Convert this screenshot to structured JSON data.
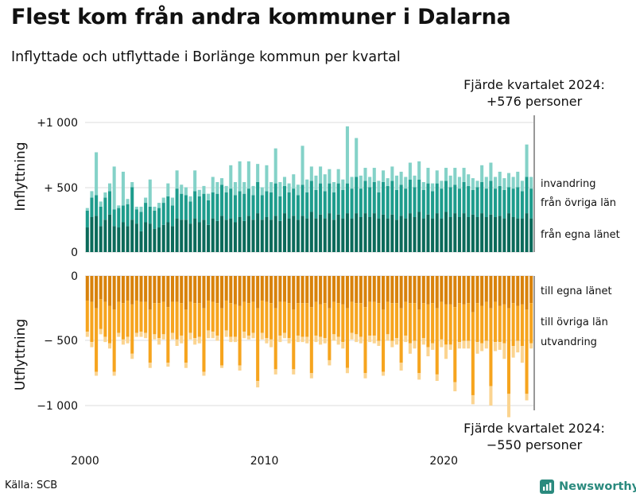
{
  "title": "Flest kom från andra kommuner i Dalarna",
  "subtitle": "Inflyttade och utflyttade i Borlänge kommun per kvartal",
  "annotation_top": [
    "Fjärde kvartalet 2024:",
    "+576 personer"
  ],
  "annotation_bottom": [
    "Fjärde kvartalet 2024:",
    "−550 personer"
  ],
  "source": "Källa: SCB",
  "brand": "Newsworthy",
  "colors": {
    "in_egna": "#0b6a5a",
    "in_ovriga": "#1d9c8c",
    "in_invandring": "#84d2c8",
    "out_egna": "#d8820b",
    "out_ovriga": "#f6a41e",
    "out_utvandring": "#fbd490",
    "grid": "#dddddd",
    "axis": "#555555",
    "brand": "#2a8a7e"
  },
  "chart_data": {
    "type": "bar",
    "stacked": true,
    "x_start_year": 2000,
    "quarters_per_year": 4,
    "x_ticks": [
      "2000",
      "2010",
      "2020"
    ],
    "panels": [
      {
        "ylabel": "Inflyttning",
        "ylim": [
          0,
          1000
        ],
        "y_ticks": [
          0,
          500,
          1000
        ],
        "y_tick_labels": [
          "0",
          "+ 500",
          "+1 000"
        ],
        "series": [
          {
            "name": "från egna länet",
            "values": [
              190,
              270,
              280,
              200,
              250,
              290,
              200,
              190,
              230,
              200,
              250,
              220,
              160,
              230,
              220,
              180,
              190,
              210,
              230,
              200,
              260,
              250,
              250,
              220,
              260,
              230,
              250,
              210,
              260,
              240,
              280,
              250,
              260,
              230,
              270,
              240,
              280,
              250,
              300,
              250,
              270,
              250,
              280,
              240,
              300,
              260,
              280,
              250,
              280,
              260,
              310,
              260,
              290,
              260,
              300,
              250,
              290,
              260,
              300,
              260,
              300,
              270,
              300,
              270,
              300,
              260,
              290,
              260,
              290,
              250,
              280,
              260,
              300,
              270,
              310,
              260,
              290,
              260,
              300,
              260,
              310,
              270,
              300,
              270,
              300,
              270,
              290,
              270,
              300,
              270,
              290,
              270,
              280,
              260,
              300,
              270,
              260,
              260,
              300,
              260
            ]
          },
          {
            "name": "från övriga län",
            "values": [
              130,
              150,
              160,
              150,
              170,
              180,
              130,
              150,
              130,
              170,
              250,
              110,
              150,
              150,
              130,
              140,
              150,
              170,
              200,
              160,
              230,
              200,
              190,
              170,
              210,
              200,
              200,
              190,
              200,
              210,
              240,
              210,
              230,
              210,
              200,
              210,
              210,
              190,
              240,
              190,
              200,
              210,
              250,
              190,
              210,
              200,
              210,
              190,
              240,
              200,
              240,
              220,
              240,
              210,
              230,
              210,
              240,
              220,
              230,
              230,
              280,
              220,
              250,
              230,
              240,
              200,
              250,
              250,
              260,
              230,
              240,
              230,
              260,
              230,
              250,
              220,
              240,
              210,
              230,
              230,
              240,
              230,
              220,
              220,
              240,
              240,
              190,
              230,
              240,
              220,
              260,
              220,
              230,
              220,
              200,
              220,
              240,
              210,
              280,
              230
            ]
          },
          {
            "name": "invandring",
            "values": [
              20,
              50,
              330,
              40,
              40,
              60,
              330,
              20,
              260,
              40,
              40,
              20,
              40,
              40,
              210,
              30,
              40,
              40,
              100,
              60,
              140,
              70,
              60,
              40,
              160,
              50,
              60,
              50,
              120,
              90,
              50,
              50,
              180,
              100,
              230,
              90,
              210,
              70,
              140,
              60,
              200,
              80,
              270,
              110,
              70,
              70,
              110,
              80,
              300,
              100,
              110,
              110,
              130,
              130,
              110,
              80,
              110,
              80,
              440,
              90,
              300,
              100,
              100,
              80,
              110,
              90,
              90,
              60,
              110,
              110,
              100,
              90,
              130,
              90,
              140,
              60,
              120,
              60,
              100,
              60,
              100,
              90,
              130,
              90,
              110,
              90,
              90,
              50,
              130,
              90,
              140,
              90,
              110,
              90,
              110,
              90,
              120,
              80,
              250,
              90
            ]
          }
        ]
      },
      {
        "ylabel": "Utflyttning",
        "ylim": [
          -1000,
          0
        ],
        "y_ticks": [
          0,
          -500,
          -1000
        ],
        "y_tick_labels": [
          "0",
          "− 500",
          "−1 000"
        ],
        "series": [
          {
            "name": "till egna länet",
            "values": [
              -190,
              -200,
              -250,
              -180,
              -200,
              -230,
              -260,
              -200,
              -210,
              -190,
              -220,
              -190,
              -200,
              -200,
              -260,
              -210,
              -210,
              -200,
              -240,
              -200,
              -200,
              -210,
              -260,
              -200,
              -210,
              -210,
              -250,
              -190,
              -200,
              -210,
              -250,
              -190,
              -210,
              -220,
              -230,
              -200,
              -210,
              -200,
              -250,
              -190,
              -200,
              -210,
              -250,
              -200,
              -200,
              -210,
              -260,
              -210,
              -210,
              -210,
              -240,
              -200,
              -220,
              -210,
              -250,
              -200,
              -210,
              -220,
              -250,
              -200,
              -210,
              -210,
              -240,
              -200,
              -200,
              -210,
              -260,
              -200,
              -210,
              -210,
              -250,
              -200,
              -210,
              -210,
              -260,
              -210,
              -220,
              -210,
              -250,
              -200,
              -220,
              -220,
              -240,
              -210,
              -220,
              -210,
              -280,
              -210,
              -230,
              -200,
              -250,
              -200,
              -230,
              -220,
              -250,
              -210,
              -230,
              -220,
              -260,
              -210
            ]
          },
          {
            "name": "till övriga län",
            "values": [
              -240,
              -310,
              -490,
              -230,
              -270,
              -290,
              -480,
              -240,
              -280,
              -280,
              -380,
              -250,
              -230,
              -240,
              -410,
              -240,
              -270,
              -250,
              -430,
              -240,
              -290,
              -250,
              -410,
              -240,
              -270,
              -260,
              -490,
              -230,
              -230,
              -250,
              -440,
              -230,
              -260,
              -250,
              -460,
              -230,
              -250,
              -240,
              -560,
              -250,
              -280,
              -280,
              -470,
              -260,
              -240,
              -270,
              -460,
              -250,
              -260,
              -260,
              -510,
              -260,
              -250,
              -270,
              -400,
              -250,
              -260,
              -290,
              -460,
              -240,
              -240,
              -260,
              -510,
              -260,
              -260,
              -290,
              -480,
              -250,
              -290,
              -270,
              -420,
              -260,
              -310,
              -290,
              -490,
              -270,
              -330,
              -310,
              -510,
              -290,
              -310,
              -310,
              -580,
              -300,
              -280,
              -290,
              -640,
              -300,
              -290,
              -300,
              -600,
              -310,
              -280,
              -300,
              -660,
              -330,
              -270,
              -320,
              -650,
              -310
            ]
          },
          {
            "name": "utvandring",
            "values": [
              -40,
              -40,
              -30,
              -40,
              -40,
              -40,
              -30,
              -30,
              -40,
              -50,
              -40,
              -30,
              -40,
              -40,
              -40,
              -40,
              -50,
              -40,
              -30,
              -50,
              -50,
              -60,
              -40,
              -50,
              -50,
              -50,
              -30,
              -60,
              -50,
              -40,
              -20,
              -50,
              -40,
              -40,
              -40,
              -50,
              -30,
              -40,
              -50,
              -50,
              -40,
              -60,
              -40,
              -50,
              -40,
              -40,
              -40,
              -50,
              -40,
              -50,
              -40,
              -50,
              -60,
              -40,
              -40,
              -50,
              -60,
              -50,
              -40,
              -50,
              -60,
              -50,
              -40,
              -50,
              -60,
              -40,
              -30,
              -50,
              -50,
              -50,
              -60,
              -50,
              -80,
              -60,
              -50,
              -50,
              -70,
              -50,
              -50,
              -60,
              -110,
              -40,
              -70,
              -50,
              -60,
              -60,
              -70,
              -90,
              -60,
              -60,
              -150,
              -70,
              -60,
              -120,
              -180,
              -90,
              -90,
              -130,
              -50,
              -40
            ]
          }
        ]
      }
    ]
  }
}
